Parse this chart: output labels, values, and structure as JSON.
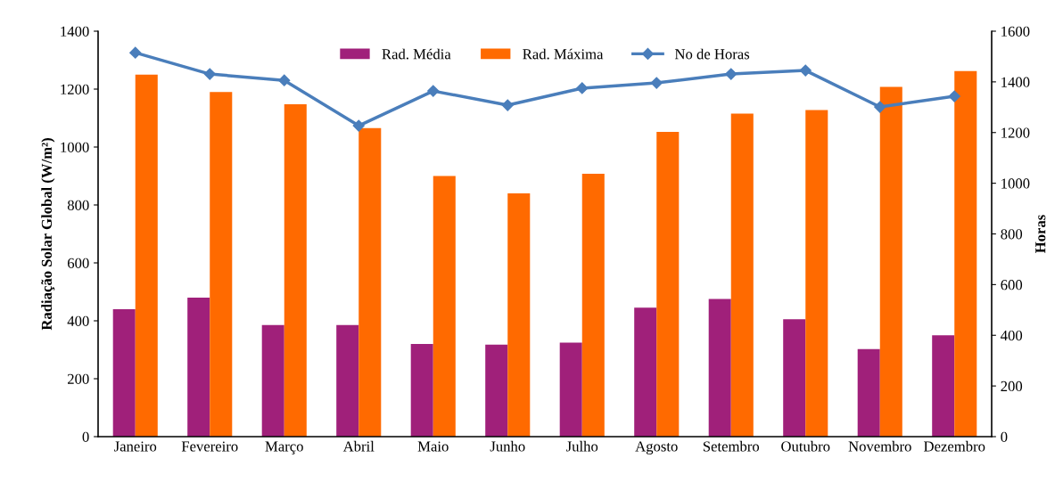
{
  "chart_data": {
    "type": "bar",
    "ylabel": "Radiação Solar Global (W/m²)",
    "y2label": "Horas",
    "categories": [
      "Janeiro",
      "Fevereiro",
      "Março",
      "Abril",
      "Maio",
      "Junho",
      "Julho",
      "Agosto",
      "Setembro",
      "Outubro",
      "Novembro",
      "Dezembro"
    ],
    "series": [
      {
        "name": "Rad. Média",
        "color": "#a0207a",
        "values": [
          440,
          480,
          385,
          385,
          320,
          318,
          325,
          445,
          475,
          405,
          302,
          350
        ]
      },
      {
        "name": "Rad. Máxima",
        "color": "#ff6a00",
        "values": [
          1250,
          1190,
          1148,
          1065,
          900,
          840,
          908,
          1052,
          1115,
          1128,
          1208,
          1262
        ]
      },
      {
        "name": "No de Horas",
        "type": "line",
        "axis": "y2",
        "color": "#4a7ebb",
        "marker": "diamond",
        "values": [
          1515,
          1431,
          1406,
          1227,
          1364,
          1308,
          1375,
          1396,
          1431,
          1445,
          1301,
          1343
        ]
      }
    ],
    "ylim": [
      0,
      1400
    ],
    "yticks": [
      0,
      200,
      400,
      600,
      800,
      1000,
      1200,
      1400
    ],
    "y2lim": [
      0,
      1600
    ],
    "y2ticks": [
      0,
      200,
      400,
      600,
      800,
      1000,
      1200,
      1400,
      1600
    ],
    "grid": false,
    "legend": "top"
  }
}
